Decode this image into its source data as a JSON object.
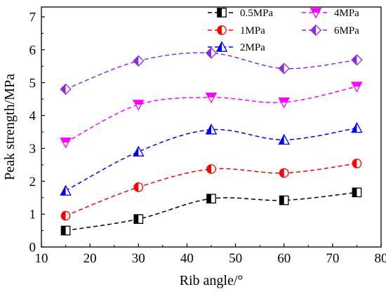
{
  "chart_data": {
    "type": "line",
    "xlabel": "Rib angle/°",
    "ylabel": "Peak strength/MPa",
    "xlim": [
      10,
      80
    ],
    "ylim": [
      0,
      7.3
    ],
    "x_ticks": [
      "10",
      "20",
      "30",
      "40",
      "50",
      "60",
      "70",
      "80"
    ],
    "y_ticks": [
      "0",
      "1",
      "2",
      "3",
      "4",
      "5",
      "6",
      "7"
    ],
    "x": [
      15,
      30,
      45,
      60,
      75
    ],
    "grid": false,
    "legend_position": "top-right",
    "line_style": "dashed smooth fit",
    "series": [
      {
        "name": "0.5MPa",
        "values": [
          0.5,
          0.85,
          1.47,
          1.42,
          1.66
        ],
        "color": "#000000",
        "marker": "square-half"
      },
      {
        "name": "1MPa",
        "values": [
          0.95,
          1.82,
          2.37,
          2.25,
          2.54
        ],
        "color": "#ff0000",
        "marker": "circle-half"
      },
      {
        "name": "2MPa",
        "values": [
          1.71,
          2.9,
          3.57,
          3.26,
          3.62
        ],
        "color": "#0000ff",
        "marker": "triangle-up-half"
      },
      {
        "name": "4MPa",
        "values": [
          3.18,
          4.33,
          4.55,
          4.4,
          4.88
        ],
        "color": "#ff00ff",
        "marker": "triangle-down-half"
      },
      {
        "name": "6MPa",
        "values": [
          4.8,
          5.66,
          5.9,
          5.43,
          5.69
        ],
        "color": "#8a2be2",
        "marker": "diamond-half"
      }
    ]
  }
}
